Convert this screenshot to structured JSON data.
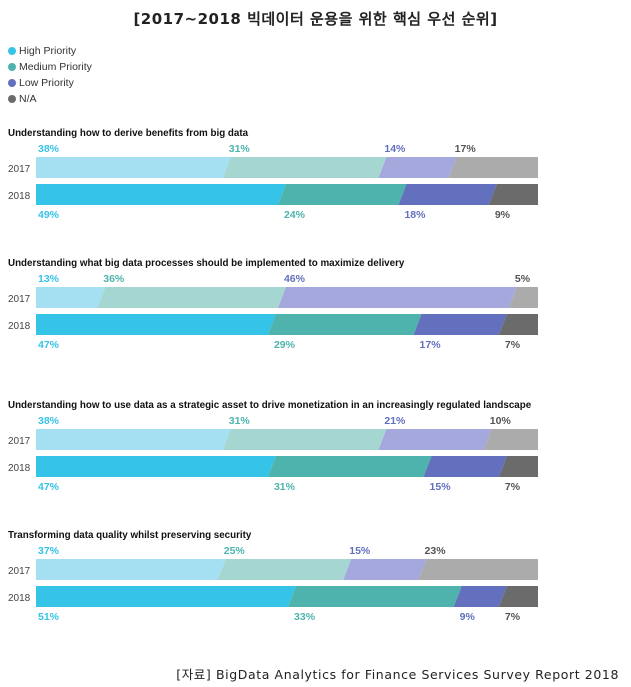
{
  "title": "[2017~2018 빅데이터 운용을 위한 핵심 우선 순위]",
  "source": "[자료] BigData Analytics for Finance Services Survey Report 2018",
  "legend": [
    {
      "label": "High Priority",
      "color": "#35c3e8"
    },
    {
      "label": "Medium Priority",
      "color": "#4db3ac"
    },
    {
      "label": "Low Priority",
      "color": "#6270bd"
    },
    {
      "label": "N/A",
      "color": "#6b6b6b"
    }
  ],
  "colors_2017": [
    "#a5e0f2",
    "#a6d6d2",
    "#a4a8dc",
    "#ababab"
  ],
  "colors_2018": [
    "#35c3e8",
    "#4db3ac",
    "#6270bd",
    "#6b6b6b"
  ],
  "label_colors": [
    "#35c3e8",
    "#4db3ac",
    "#6270bd",
    "#555555"
  ],
  "chart_data": {
    "type": "bar",
    "orientation": "horizontal-stacked-100",
    "categories": [
      "2017",
      "2018"
    ],
    "series_names": [
      "High Priority",
      "Medium Priority",
      "Low Priority",
      "N/A"
    ],
    "groups": [
      {
        "title": "Understanding how to derive benefits from big data",
        "2017": [
          38,
          31,
          14,
          17
        ],
        "2018": [
          49,
          24,
          18,
          9
        ]
      },
      {
        "title": "Understanding what big data processes should be implemented to maximize delivery",
        "2017": [
          13,
          36,
          46,
          5
        ],
        "2018": [
          47,
          29,
          17,
          7
        ]
      },
      {
        "title": "Understanding how to use data as a strategic asset to drive monetization in an increasingly regulated landscape",
        "2017": [
          38,
          31,
          21,
          10
        ],
        "2018": [
          47,
          31,
          15,
          7
        ]
      },
      {
        "title": "Transforming data quality whilst preserving security",
        "2017": [
          37,
          25,
          15,
          23
        ],
        "2018": [
          51,
          33,
          9,
          7
        ]
      }
    ],
    "value_suffix": "%"
  }
}
